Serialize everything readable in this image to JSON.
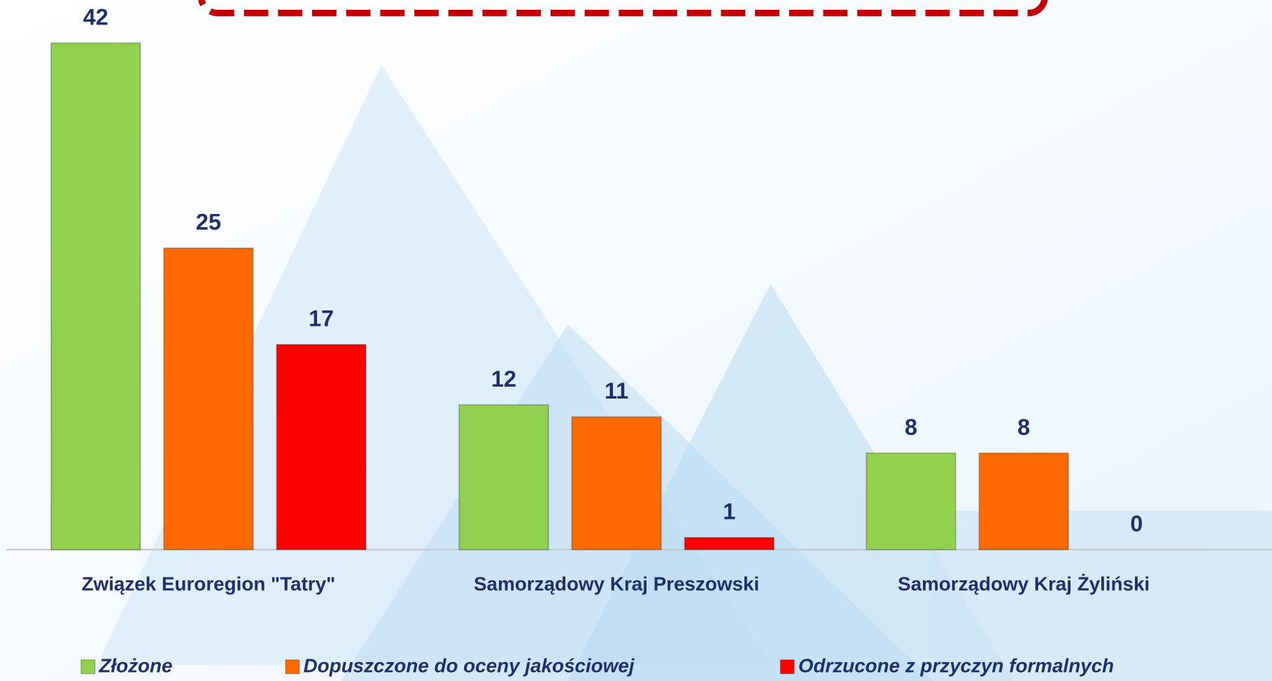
{
  "chart_data": {
    "type": "bar",
    "categories": [
      "Związek Euroregion \"Tatry\"",
      "Samorządowy Kraj Preszowski",
      "Samorządowy Kraj Żyliński"
    ],
    "series": [
      {
        "name": "Złożone",
        "color": "#92d050",
        "values": [
          42,
          12,
          8
        ]
      },
      {
        "name": "Dopuszczone do oceny jakościowej",
        "color": "#ff6a00",
        "values": [
          25,
          11,
          8
        ]
      },
      {
        "name": "Odrzucone z przyczyn formalnych",
        "color": "#ff0000",
        "values": [
          17,
          1,
          0
        ]
      }
    ],
    "legend": "bottom"
  }
}
